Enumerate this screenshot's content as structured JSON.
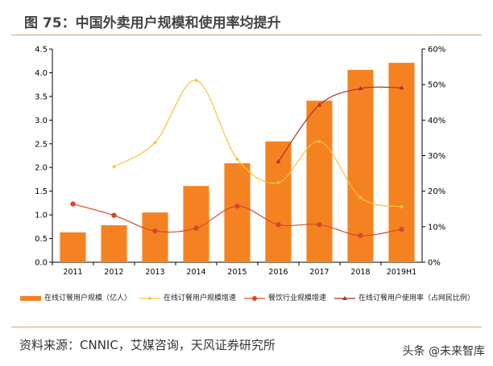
{
  "title": "图 75：中国外卖用户规模和使用率均提升",
  "source": "资料来源：CNNIC，艾媒咨询，天风证券研究所",
  "watermark": "头条 @未来智库",
  "chart_data": {
    "type": "bar+line",
    "categories": [
      "2011",
      "2012",
      "2013",
      "2014",
      "2015",
      "2016",
      "2017",
      "2018",
      "2019H1"
    ],
    "left_axis": {
      "ylim": [
        0,
        4.5
      ],
      "ticks": [
        "0.0",
        "0.5",
        "1.0",
        "1.5",
        "2.0",
        "2.5",
        "3.0",
        "3.5",
        "4.0",
        "4.5"
      ]
    },
    "right_axis": {
      "ylim": [
        0,
        60
      ],
      "ticks": [
        "0%",
        "10%",
        "20%",
        "30%",
        "40%",
        "50%",
        "60%"
      ]
    },
    "grid": false,
    "legend_position": "bottom",
    "series": [
      {
        "name": "在线订餐用户规模（亿人）",
        "type": "bar",
        "axis": "left",
        "color": "#f58220",
        "values": [
          0.63,
          0.78,
          1.05,
          1.61,
          2.09,
          2.55,
          3.41,
          4.06,
          4.21
        ]
      },
      {
        "name": "在线订餐用户规模增速",
        "type": "line",
        "axis": "right",
        "color": "#f9c33a",
        "marker": "diamond",
        "values": [
          null,
          26.9,
          33.7,
          51.2,
          29.0,
          22.4,
          34.0,
          18.2,
          15.6
        ]
      },
      {
        "name": "餐饮行业规模增速",
        "type": "line",
        "axis": "right",
        "color": "#d9472b",
        "marker": "circle",
        "values": [
          16.4,
          13.2,
          8.8,
          9.6,
          15.8,
          10.6,
          10.6,
          7.5,
          9.3
        ]
      },
      {
        "name": "在线订餐用户使用率（占网民比例）",
        "type": "line",
        "axis": "right",
        "color": "#a8322a",
        "marker": "triangle",
        "values": [
          null,
          null,
          null,
          null,
          null,
          28.3,
          44.3,
          48.9,
          49.1
        ]
      }
    ]
  }
}
